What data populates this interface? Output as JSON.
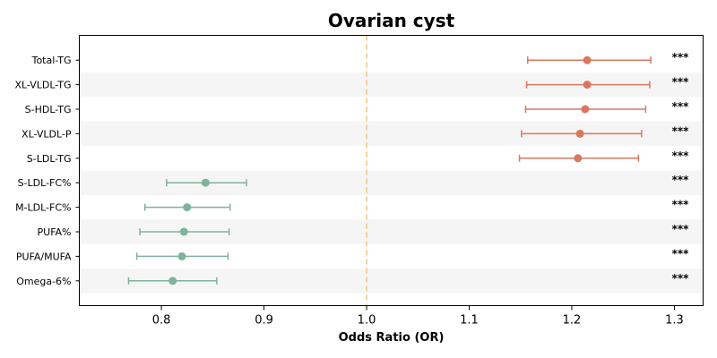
{
  "chart_data": {
    "type": "scatter",
    "subtype": "forest-plot",
    "title": "Ovarian cyst",
    "xlabel": "Odds Ratio (OR)",
    "ylabel": "",
    "xlim": [
      0.72,
      1.328
    ],
    "xticks": [
      0.8,
      0.9,
      1.0,
      1.1,
      1.2,
      1.3
    ],
    "xtick_labels": [
      "0.8",
      "0.9",
      "1.0",
      "1.1",
      "1.2",
      "1.3"
    ],
    "reference_line": {
      "x": 1.0,
      "style": "dashed",
      "color": "#f5c47a"
    },
    "grid": false,
    "row_banding": true,
    "colors": {
      "positive": "#d9785f",
      "negative": "#7fb39b",
      "band": "#f5f5f5"
    },
    "rows": [
      {
        "label": "Total-TG",
        "or": 1.215,
        "lower": 1.157,
        "upper": 1.277,
        "sig": "***"
      },
      {
        "label": "XL-VLDL-TG",
        "or": 1.215,
        "lower": 1.156,
        "upper": 1.276,
        "sig": "***"
      },
      {
        "label": "S-HDL-TG",
        "or": 1.213,
        "lower": 1.155,
        "upper": 1.272,
        "sig": "***"
      },
      {
        "label": "XL-VLDL-P",
        "or": 1.208,
        "lower": 1.151,
        "upper": 1.268,
        "sig": "***"
      },
      {
        "label": "S-LDL-TG",
        "or": 1.206,
        "lower": 1.149,
        "upper": 1.265,
        "sig": "***"
      },
      {
        "label": "S-LDL-FC%",
        "or": 0.843,
        "lower": 0.805,
        "upper": 0.883,
        "sig": "***"
      },
      {
        "label": "M-LDL-FC%",
        "or": 0.825,
        "lower": 0.784,
        "upper": 0.867,
        "sig": "***"
      },
      {
        "label": "PUFA%",
        "or": 0.822,
        "lower": 0.779,
        "upper": 0.866,
        "sig": "***"
      },
      {
        "label": "PUFA/MUFA",
        "or": 0.82,
        "lower": 0.776,
        "upper": 0.865,
        "sig": "***"
      },
      {
        "label": "Omega-6%",
        "or": 0.811,
        "lower": 0.768,
        "upper": 0.854,
        "sig": "***"
      }
    ]
  }
}
